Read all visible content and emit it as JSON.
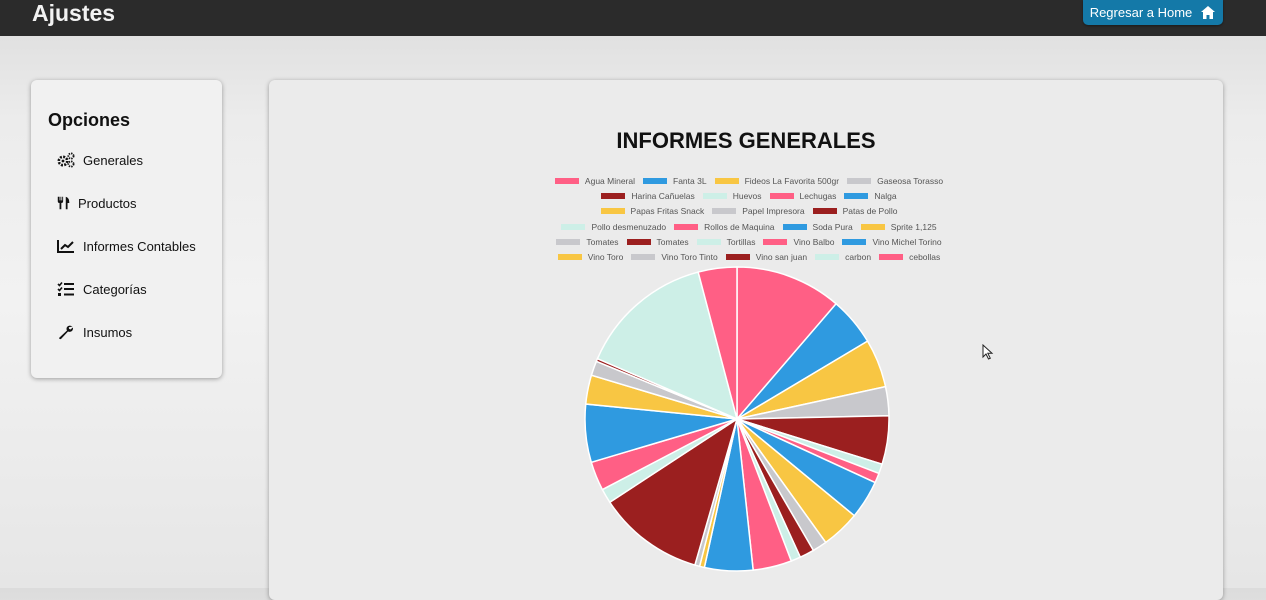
{
  "app": {
    "title": "Ajustes",
    "home_button": "Regresar a Home"
  },
  "sidebar": {
    "title": "Opciones",
    "items": [
      {
        "label": "Generales",
        "icon": "gears-icon"
      },
      {
        "label": "Productos",
        "icon": "utensils-icon"
      },
      {
        "label": "Informes Contables",
        "icon": "chart-line-icon"
      },
      {
        "label": "Categorías",
        "icon": "list-check-icon"
      },
      {
        "label": "Insumos",
        "icon": "wrench-icon"
      }
    ]
  },
  "report": {
    "title": "INFORMES GENERALES"
  },
  "colors": {
    "pink": "#ff5f85",
    "blue": "#2f9ae0",
    "yellow": "#f8c643",
    "grey": "#c8c8cc",
    "darkred": "#9b1f1f",
    "mint": "#cdefe7"
  },
  "chart_data": {
    "type": "pie",
    "title": "INFORMES GENERALES",
    "legend_position": "top",
    "categories": [
      "Agua Mineral",
      "Fanta 3L",
      "Fideos La Favorita 500gr",
      "Gaseosa Torasso",
      "Harina Cañuelas",
      "Huevos",
      "Lechugas",
      "Nalga",
      "Papas Fritas Snack",
      "Papel Impresora",
      "Patas de Pollo",
      "Pollo desmenuzado",
      "Rollos de Maquina",
      "Soda Pura",
      "Sprite 1,125",
      "Tomates",
      "Tomates",
      "Tortillas",
      "Vino Balbo",
      "Vino Michel Torino",
      "Vino Toro",
      "Vino Toro Tinto",
      "Vino san juan",
      "carbon",
      "cebollas"
    ],
    "values": [
      11,
      5,
      5,
      3,
      5,
      1,
      1,
      4,
      4,
      1.5,
      1.5,
      1,
      4,
      5,
      0.5,
      0.5,
      11,
      1.5,
      3,
      6,
      3,
      1.5,
      0.3,
      14,
      4
    ],
    "colors": [
      "#ff5f85",
      "#2f9ae0",
      "#f8c643",
      "#c8c8cc",
      "#9b1f1f",
      "#cdefe7",
      "#ff5f85",
      "#2f9ae0",
      "#f8c643",
      "#c8c8cc",
      "#9b1f1f",
      "#cdefe7",
      "#ff5f85",
      "#2f9ae0",
      "#f8c643",
      "#c8c8cc",
      "#9b1f1f",
      "#cdefe7",
      "#ff5f85",
      "#2f9ae0",
      "#f8c643",
      "#c8c8cc",
      "#9b1f1f",
      "#cdefe7",
      "#ff5f85"
    ]
  }
}
